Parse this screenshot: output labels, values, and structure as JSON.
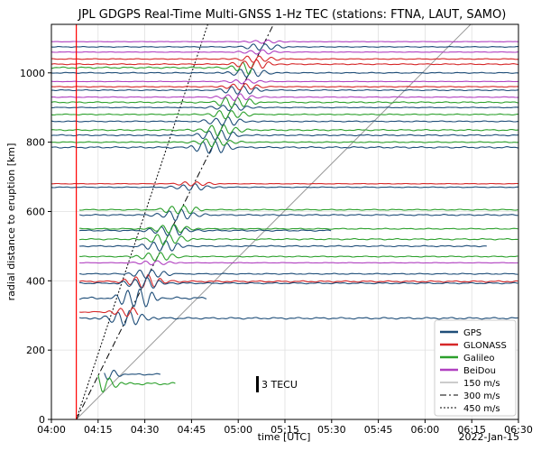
{
  "chart_data": {
    "type": "line",
    "title": "JPL GDGPS Real-Time Multi-GNSS 1-Hz TEC (stations: FTNA, LAUT, SAMO)",
    "xlabel": "time [UTC]",
    "ylabel": "radial distance to eruption [km]",
    "date_label": "2022-Jan-15",
    "x_ticks": [
      "04:00",
      "04:15",
      "04:30",
      "04:45",
      "05:00",
      "05:15",
      "05:30",
      "05:45",
      "06:00",
      "06:15",
      "06:30"
    ],
    "y_ticks": [
      0,
      200,
      400,
      600,
      800,
      1000
    ],
    "xlim_minutes": [
      240,
      390
    ],
    "ylim": [
      0,
      1140
    ],
    "grid": true,
    "eruption_time_minutes": 248,
    "scale_bar_label": "3 TECU",
    "legend_position": "lower-right",
    "constellations": [
      {
        "name": "GPS",
        "color": "#1f4e79"
      },
      {
        "name": "GLONASS",
        "color": "#d62728"
      },
      {
        "name": "Galileo",
        "color": "#2ca02c"
      },
      {
        "name": "BeiDou",
        "color": "#b040c0"
      }
    ],
    "speed_lines": [
      {
        "name": "150 m/s",
        "speed_ms": 150,
        "style": "solid"
      },
      {
        "name": "300 m/s",
        "speed_ms": 300,
        "style": "dashdot"
      },
      {
        "name": "450 m/s",
        "speed_ms": 450,
        "style": "dotted"
      }
    ],
    "series": [
      {
        "constellation": "GPS",
        "distance_km": 130,
        "start": 257,
        "end": 275,
        "amp": 12
      },
      {
        "constellation": "Galileo",
        "distance_km": 103,
        "start": 255,
        "end": 280,
        "amp": 20
      },
      {
        "constellation": "GPS",
        "distance_km": 292,
        "start": 249,
        "end": 390,
        "amp": 14
      },
      {
        "constellation": "GLONASS",
        "distance_km": 310,
        "start": 249,
        "end": 268,
        "amp": 8
      },
      {
        "constellation": "GPS",
        "distance_km": 350,
        "start": 249,
        "end": 290,
        "amp": 18
      },
      {
        "constellation": "GLONASS",
        "distance_km": 398,
        "start": 249,
        "end": 390,
        "amp": 12
      },
      {
        "constellation": "GPS",
        "distance_km": 393,
        "start": 249,
        "end": 390,
        "amp": 10
      },
      {
        "constellation": "GPS",
        "distance_km": 420,
        "start": 249,
        "end": 390,
        "amp": 8
      },
      {
        "constellation": "BeiDou",
        "distance_km": 452,
        "start": 249,
        "end": 390,
        "amp": 4
      },
      {
        "constellation": "Galileo",
        "distance_km": 470,
        "start": 249,
        "end": 390,
        "amp": 8
      },
      {
        "constellation": "GPS",
        "distance_km": 500,
        "start": 249,
        "end": 380,
        "amp": 10
      },
      {
        "constellation": "Galileo",
        "distance_km": 520,
        "start": 249,
        "end": 390,
        "amp": 10
      },
      {
        "constellation": "GPS",
        "distance_km": 545,
        "start": 249,
        "end": 330,
        "amp": 10
      },
      {
        "constellation": "Galileo",
        "distance_km": 550,
        "start": 249,
        "end": 390,
        "amp": 8
      },
      {
        "constellation": "GPS",
        "distance_km": 590,
        "start": 249,
        "end": 390,
        "amp": 10
      },
      {
        "constellation": "Galileo",
        "distance_km": 605,
        "start": 249,
        "end": 390,
        "amp": 8
      },
      {
        "constellation": "GPS",
        "distance_km": 670,
        "start": 240,
        "end": 390,
        "amp": 6
      },
      {
        "constellation": "GLONASS",
        "distance_km": 680,
        "start": 240,
        "end": 390,
        "amp": 4
      },
      {
        "constellation": "GPS",
        "distance_km": 785,
        "start": 240,
        "end": 390,
        "amp": 12
      },
      {
        "constellation": "Galileo",
        "distance_km": 800,
        "start": 240,
        "end": 390,
        "amp": 8
      },
      {
        "constellation": "GPS",
        "distance_km": 820,
        "start": 240,
        "end": 390,
        "amp": 10
      },
      {
        "constellation": "Galileo",
        "distance_km": 835,
        "start": 240,
        "end": 390,
        "amp": 10
      },
      {
        "constellation": "GPS",
        "distance_km": 860,
        "start": 240,
        "end": 390,
        "amp": 8
      },
      {
        "constellation": "Galileo",
        "distance_km": 880,
        "start": 240,
        "end": 390,
        "amp": 8
      },
      {
        "constellation": "GPS",
        "distance_km": 900,
        "start": 240,
        "end": 390,
        "amp": 6
      },
      {
        "constellation": "Galileo",
        "distance_km": 915,
        "start": 240,
        "end": 390,
        "amp": 10
      },
      {
        "constellation": "BeiDou",
        "distance_km": 930,
        "start": 240,
        "end": 390,
        "amp": 6
      },
      {
        "constellation": "GPS",
        "distance_km": 950,
        "start": 240,
        "end": 390,
        "amp": 8
      },
      {
        "constellation": "GLONASS",
        "distance_km": 960,
        "start": 240,
        "end": 390,
        "amp": 6
      },
      {
        "constellation": "BeiDou",
        "distance_km": 975,
        "start": 240,
        "end": 390,
        "amp": 4
      },
      {
        "constellation": "GPS",
        "distance_km": 1000,
        "start": 240,
        "end": 390,
        "amp": 8
      },
      {
        "constellation": "Galileo",
        "distance_km": 1015,
        "start": 240,
        "end": 305,
        "amp": 12
      },
      {
        "constellation": "GLONASS",
        "distance_km": 1025,
        "start": 240,
        "end": 390,
        "amp": 8
      },
      {
        "constellation": "GLONASS",
        "distance_km": 1040,
        "start": 240,
        "end": 390,
        "amp": 6
      },
      {
        "constellation": "BeiDou",
        "distance_km": 1060,
        "start": 240,
        "end": 390,
        "amp": 4
      },
      {
        "constellation": "GPS",
        "distance_km": 1075,
        "start": 240,
        "end": 390,
        "amp": 6
      },
      {
        "constellation": "BeiDou",
        "distance_km": 1090,
        "start": 240,
        "end": 390,
        "amp": 3
      }
    ]
  }
}
